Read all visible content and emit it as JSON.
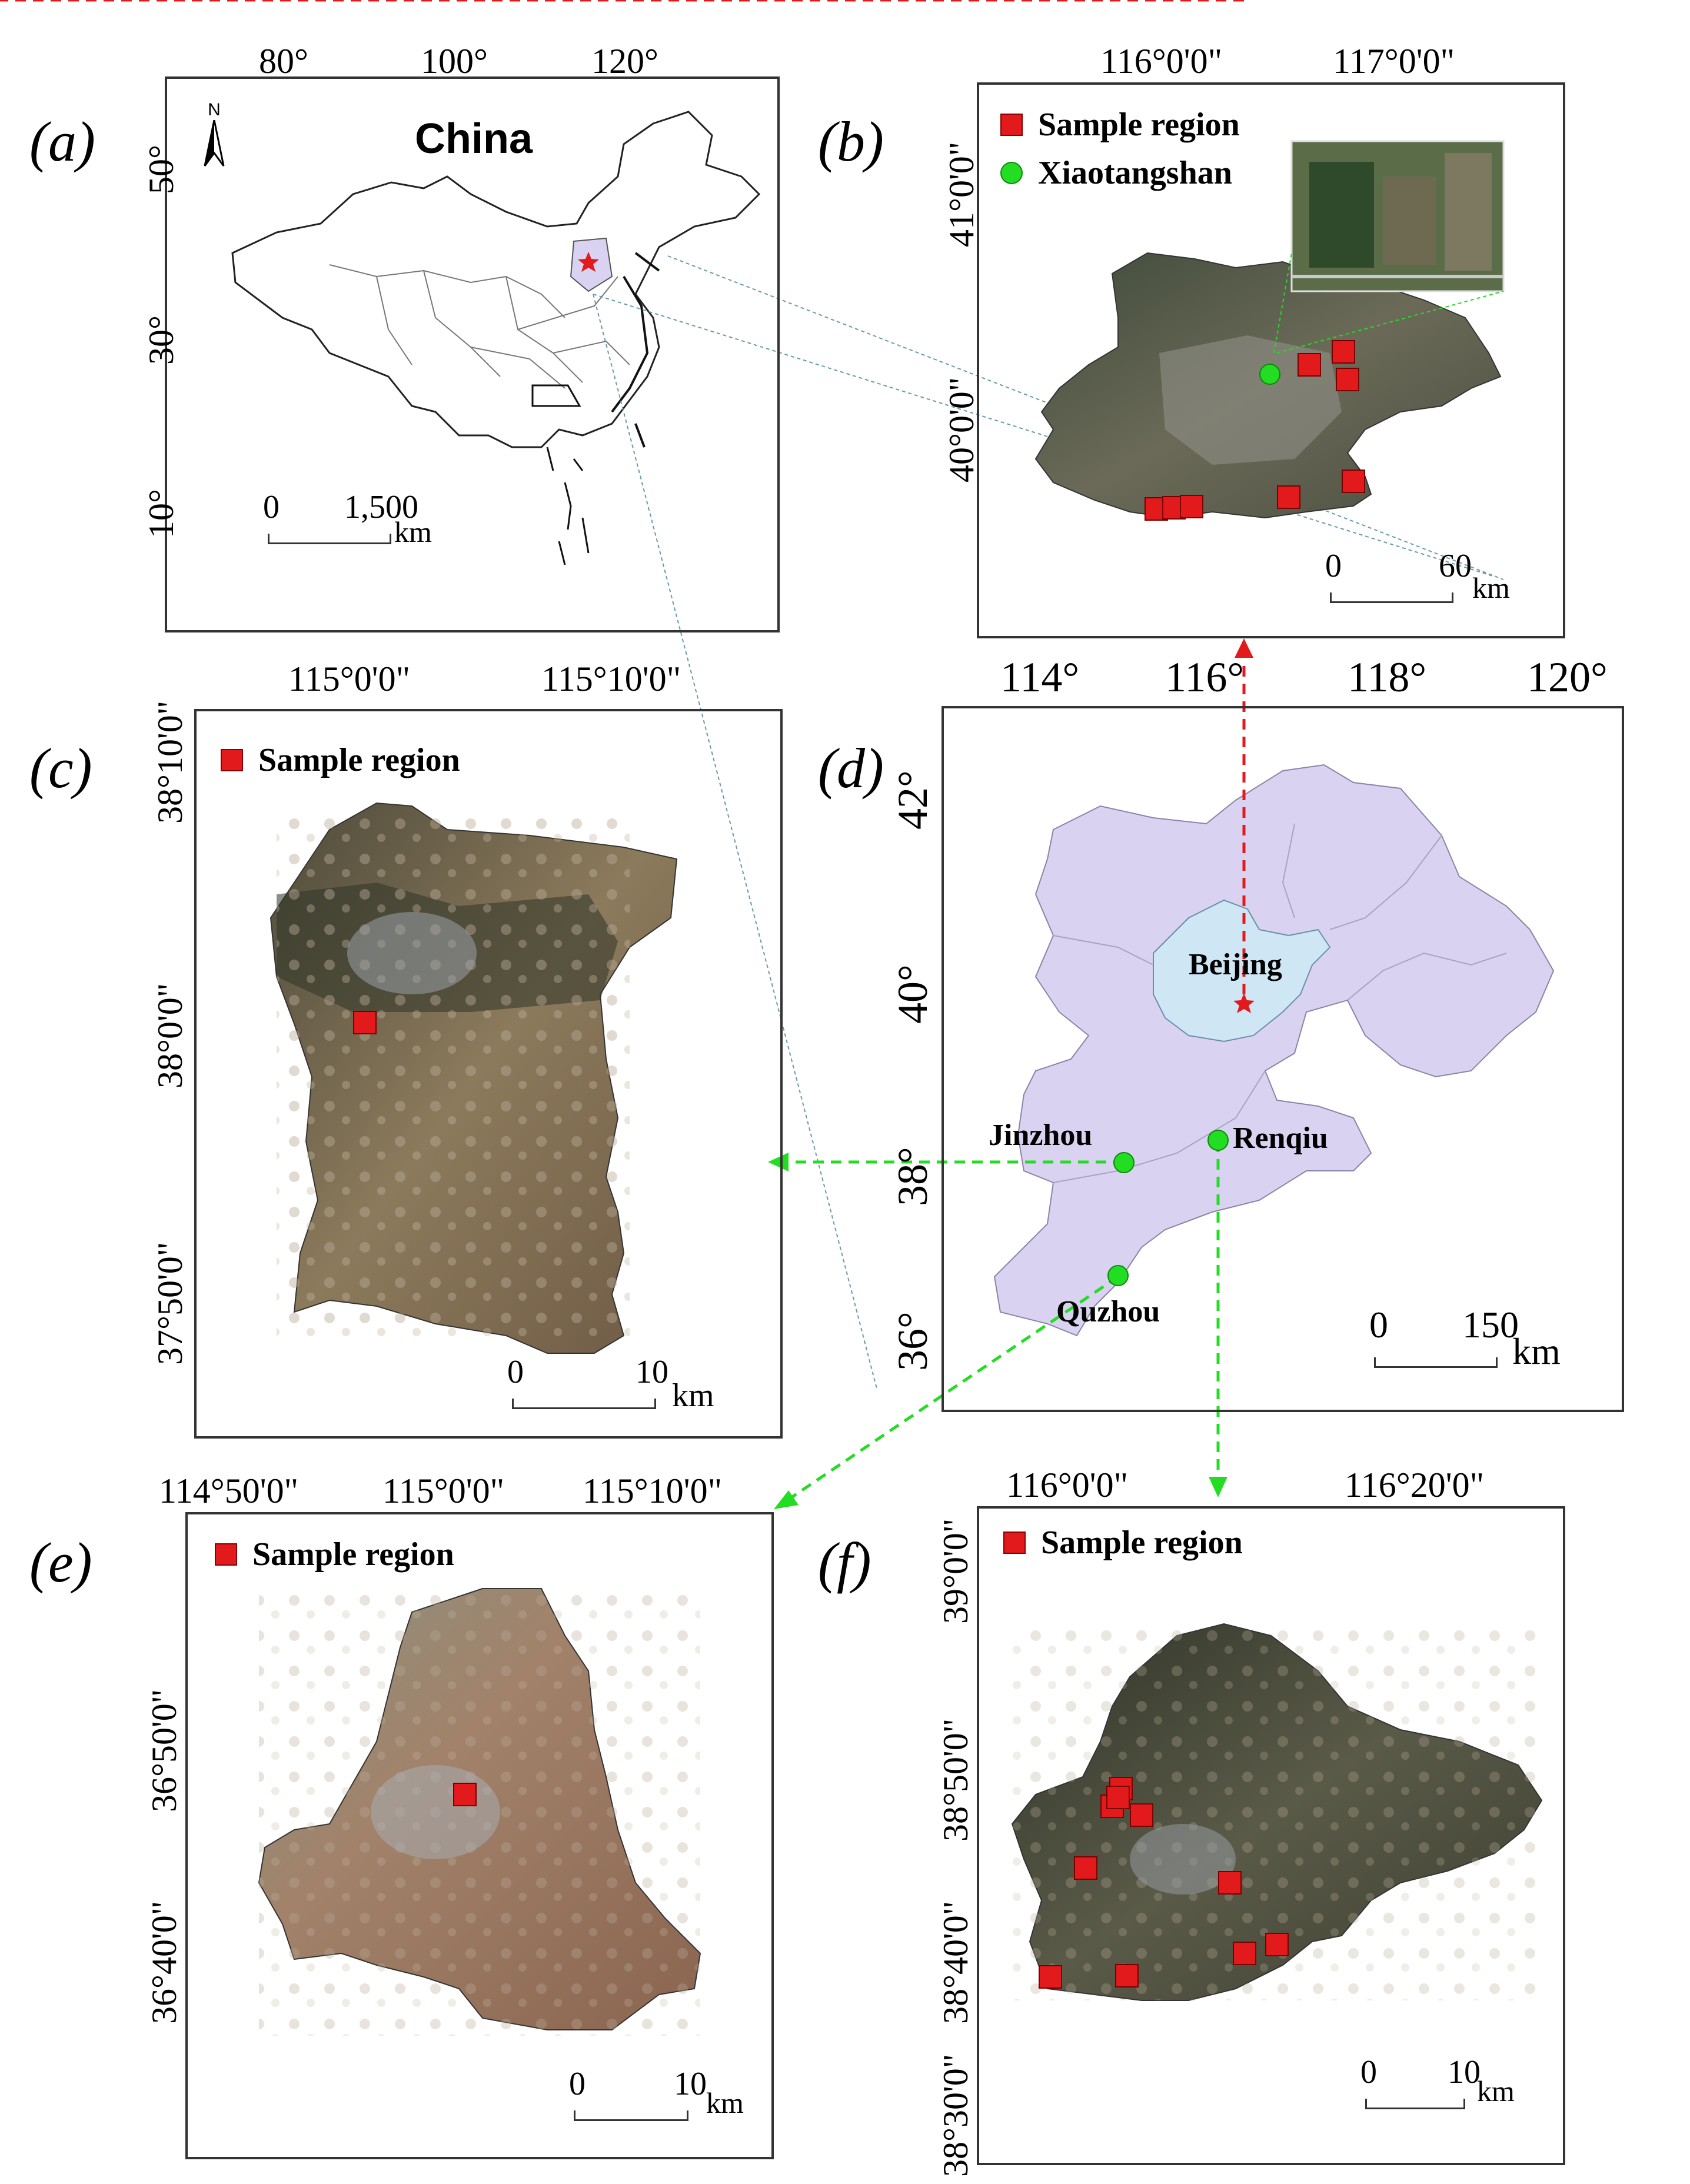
{
  "panels": {
    "a": {
      "letter": "(a)",
      "title": "China",
      "north": "N",
      "xticks": [
        "80°",
        "100°",
        "120°"
      ],
      "yticks": [
        "50°",
        "30°",
        "10°"
      ],
      "scale": {
        "zero": "0",
        "max": "1,500",
        "unit": "km"
      }
    },
    "b": {
      "letter": "(b)",
      "xticks": [
        "116°0'0\"",
        "117°0'0\""
      ],
      "yticks": [
        "41°0'0\"",
        "40°0'0\""
      ],
      "legend": [
        {
          "symbol": "square",
          "label": "Sample region"
        },
        {
          "symbol": "circle",
          "label": "Xiaotangshan"
        }
      ],
      "scale": {
        "zero": "0",
        "max": "60",
        "unit": "km"
      }
    },
    "c": {
      "letter": "(c)",
      "xticks": [
        "115°0'0\"",
        "115°10'0\""
      ],
      "yticks": [
        "38°10'0\"",
        "38°0'0\"",
        "37°50'0\""
      ],
      "legend": [
        {
          "symbol": "square",
          "label": "Sample region"
        }
      ],
      "scale": {
        "zero": "0",
        "max": "10",
        "unit": "km"
      }
    },
    "d": {
      "letter": "(d)",
      "xticks": [
        "114°",
        "116°",
        "118°",
        "120°"
      ],
      "yticks": [
        "42°",
        "40°",
        "38°",
        "36°"
      ],
      "places": [
        "Beijing",
        "Jinzhou",
        "Renqiu",
        "Quzhou"
      ],
      "scale": {
        "zero": "0",
        "max": "150",
        "unit": "km"
      }
    },
    "e": {
      "letter": "(e)",
      "xticks": [
        "114°50'0\"",
        "115°0'0\"",
        "115°10'0\""
      ],
      "yticks": [
        "36°50'0\"",
        "36°40'0\""
      ],
      "legend": [
        {
          "symbol": "square",
          "label": "Sample region"
        }
      ],
      "scale": {
        "zero": "0",
        "max": "10",
        "unit": "km"
      }
    },
    "f": {
      "letter": "(f)",
      "xticks": [
        "116°0'0\"",
        "116°20'0\""
      ],
      "yticks": [
        "39°0'0\"",
        "38°50'0\"",
        "38°40'0\"",
        "38°30'0\""
      ],
      "legend": [
        {
          "symbol": "square",
          "label": "Sample region"
        }
      ],
      "scale": {
        "zero": "0",
        "max": "10",
        "unit": "km"
      }
    }
  },
  "colors": {
    "sample_region": "#e31a1c",
    "site": "#22dd22",
    "hebei": "#d9d2f0",
    "beijing": "#cfe6f5",
    "red_arrow": "#e31a1c",
    "green_arrow": "#22dd22",
    "leader_line": "#6a9aa8"
  },
  "icons": [
    "north-arrow-icon",
    "star-icon"
  ]
}
